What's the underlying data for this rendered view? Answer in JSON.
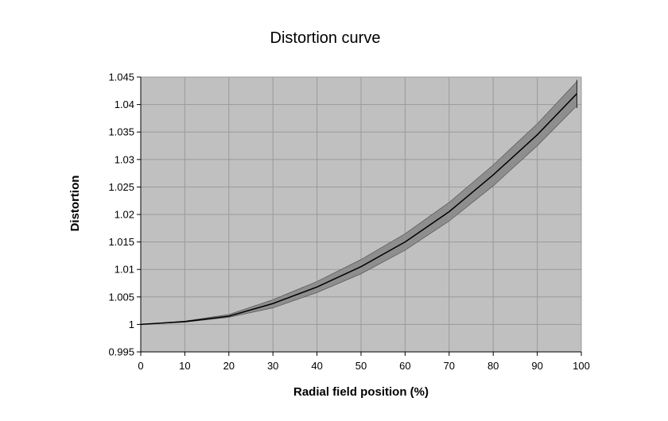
{
  "chart_data": {
    "type": "line",
    "title": "Distortion curve",
    "xlabel": "Radial field position (%)",
    "ylabel": "Distortion",
    "xlim": [
      0,
      100
    ],
    "ylim": [
      0.995,
      1.045
    ],
    "x_ticks": [
      "0",
      "10",
      "20",
      "30",
      "40",
      "50",
      "60",
      "70",
      "80",
      "90",
      "100"
    ],
    "y_ticks": [
      "0.995",
      "1",
      "1.005",
      "1.01",
      "1.015",
      "1.02",
      "1.025",
      "1.03",
      "1.035",
      "1.04",
      "1.045"
    ],
    "grid": true,
    "legend": "none",
    "series": [
      {
        "x": [
          0,
          10,
          20,
          30,
          40,
          50,
          60,
          70,
          80,
          90,
          99
        ],
        "y": [
          1.0,
          1.0005,
          1.0015,
          1.0038,
          1.0068,
          1.0105,
          1.015,
          1.0205,
          1.0272,
          1.0345,
          1.042
        ],
        "band_lower": [
          1.0,
          1.0004,
          1.0013,
          1.003,
          1.0058,
          1.0092,
          1.0135,
          1.0188,
          1.0252,
          1.0325,
          1.0398
        ],
        "band_upper": [
          1.0,
          1.0006,
          1.0018,
          1.0045,
          1.0078,
          1.0118,
          1.0165,
          1.0222,
          1.029,
          1.0365,
          1.0442
        ]
      }
    ],
    "colors": {
      "plot_background": "#c0c0c0",
      "grid": "#9a9a9a",
      "band_fill": "#8e8e8e",
      "line": "#000000"
    }
  }
}
